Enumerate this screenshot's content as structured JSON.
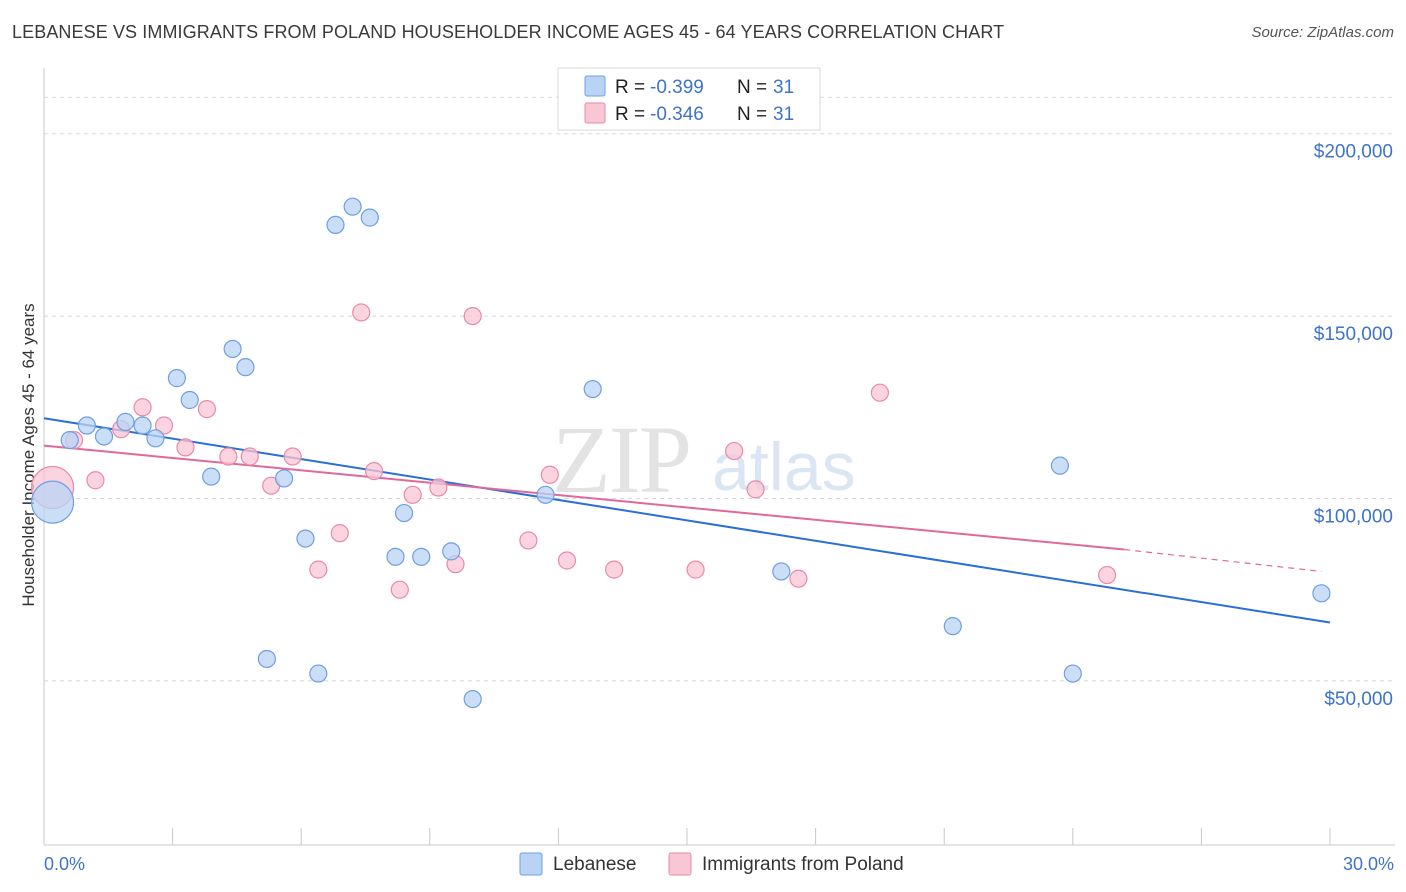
{
  "header": {
    "title": "LEBANESE VS IMMIGRANTS FROM POLAND HOUSEHOLDER INCOME AGES 45 - 64 YEARS CORRELATION CHART",
    "source": "Source: ZipAtlas.com"
  },
  "watermark": {
    "zip": "ZIP",
    "atlas": "atlas"
  },
  "legend": {
    "r_label": "R = ",
    "n_label": "N = ",
    "rows": [
      {
        "series": "Lebanese",
        "r": "-0.399",
        "n": "31",
        "fill": "#b9d3f5",
        "stroke": "#6f9fe0"
      },
      {
        "series": "Immigrants from Poland",
        "r": "-0.346",
        "n": "31",
        "fill": "#f9c6d6",
        "stroke": "#e88aaa"
      }
    ]
  },
  "colors": {
    "lebanese_fill": "#b9d3f5",
    "lebanese_stroke": "#6f9fe0",
    "lebanese_line": "#2a6fd6",
    "poland_fill": "#f9c6d6",
    "poland_stroke": "#e88aaa",
    "poland_line": "#e0699a",
    "axis_text": "#3d74c9",
    "grid": "#d8d8d8"
  },
  "chart_data": {
    "type": "scatter",
    "title": "LEBANESE VS IMMIGRANTS FROM POLAND HOUSEHOLDER INCOME AGES 45 - 64 YEARS CORRELATION CHART",
    "xlabel": "",
    "ylabel": "Householder Income Ages 45 - 64 years",
    "xlim": [
      0,
      30
    ],
    "ylim": [
      5000,
      215000
    ],
    "x_tick_labels": [
      "0.0%",
      "30.0%"
    ],
    "y_ticks": [
      50000,
      100000,
      150000,
      200000
    ],
    "y_tick_labels": [
      "$50,000",
      "$100,000",
      "$150,000",
      "$200,000"
    ],
    "grid": true,
    "legend_position": "top-center",
    "series": [
      {
        "name": "Lebanese",
        "points": [
          {
            "x": 0.2,
            "y": 99000,
            "big": true
          },
          {
            "x": 0.6,
            "y": 116000
          },
          {
            "x": 1.0,
            "y": 120000
          },
          {
            "x": 1.4,
            "y": 117000
          },
          {
            "x": 1.9,
            "y": 121000
          },
          {
            "x": 2.3,
            "y": 120000
          },
          {
            "x": 2.6,
            "y": 116500
          },
          {
            "x": 3.1,
            "y": 133000
          },
          {
            "x": 3.4,
            "y": 127000
          },
          {
            "x": 3.9,
            "y": 106000
          },
          {
            "x": 4.4,
            "y": 141000
          },
          {
            "x": 4.7,
            "y": 136000
          },
          {
            "x": 5.2,
            "y": 56000
          },
          {
            "x": 5.6,
            "y": 105500
          },
          {
            "x": 6.1,
            "y": 89000
          },
          {
            "x": 6.4,
            "y": 52000
          },
          {
            "x": 6.8,
            "y": 175000
          },
          {
            "x": 7.2,
            "y": 180000
          },
          {
            "x": 7.6,
            "y": 177000
          },
          {
            "x": 8.2,
            "y": 84000
          },
          {
            "x": 8.4,
            "y": 96000
          },
          {
            "x": 8.8,
            "y": 84000
          },
          {
            "x": 9.5,
            "y": 85500
          },
          {
            "x": 10.0,
            "y": 45000
          },
          {
            "x": 11.7,
            "y": 101000
          },
          {
            "x": 12.8,
            "y": 130000
          },
          {
            "x": 17.2,
            "y": 80000
          },
          {
            "x": 21.2,
            "y": 65000
          },
          {
            "x": 23.7,
            "y": 109000
          },
          {
            "x": 24.0,
            "y": 52000
          },
          {
            "x": 29.8,
            "y": 74000
          }
        ],
        "trend": {
          "x": [
            0,
            30
          ],
          "y": [
            122000,
            66000
          ]
        }
      },
      {
        "name": "Immigrants from Poland",
        "points": [
          {
            "x": 0.2,
            "y": 103000,
            "big": true
          },
          {
            "x": 0.7,
            "y": 116000
          },
          {
            "x": 1.2,
            "y": 105000
          },
          {
            "x": 1.8,
            "y": 119000
          },
          {
            "x": 2.3,
            "y": 125000
          },
          {
            "x": 2.8,
            "y": 120000
          },
          {
            "x": 3.3,
            "y": 114000
          },
          {
            "x": 3.8,
            "y": 124500
          },
          {
            "x": 4.3,
            "y": 111500
          },
          {
            "x": 4.8,
            "y": 111500
          },
          {
            "x": 5.3,
            "y": 103500
          },
          {
            "x": 5.8,
            "y": 111500
          },
          {
            "x": 6.4,
            "y": 80500
          },
          {
            "x": 6.9,
            "y": 90500
          },
          {
            "x": 7.4,
            "y": 151000
          },
          {
            "x": 7.7,
            "y": 107500
          },
          {
            "x": 8.3,
            "y": 75000
          },
          {
            "x": 8.6,
            "y": 101000
          },
          {
            "x": 9.2,
            "y": 103000
          },
          {
            "x": 9.6,
            "y": 82000
          },
          {
            "x": 10.0,
            "y": 150000
          },
          {
            "x": 11.3,
            "y": 88500
          },
          {
            "x": 11.8,
            "y": 106500
          },
          {
            "x": 12.2,
            "y": 83000
          },
          {
            "x": 13.3,
            "y": 80500
          },
          {
            "x": 15.2,
            "y": 80500
          },
          {
            "x": 16.1,
            "y": 113000
          },
          {
            "x": 16.6,
            "y": 102500
          },
          {
            "x": 17.6,
            "y": 78000
          },
          {
            "x": 19.5,
            "y": 129000
          },
          {
            "x": 24.8,
            "y": 79000
          }
        ],
        "trend": {
          "x": [
            0,
            25.2
          ],
          "y": [
            114500,
            86000
          ]
        },
        "trend_dashed": {
          "x": [
            25.2,
            29.8
          ],
          "y": [
            86000,
            80000
          ]
        }
      }
    ]
  }
}
